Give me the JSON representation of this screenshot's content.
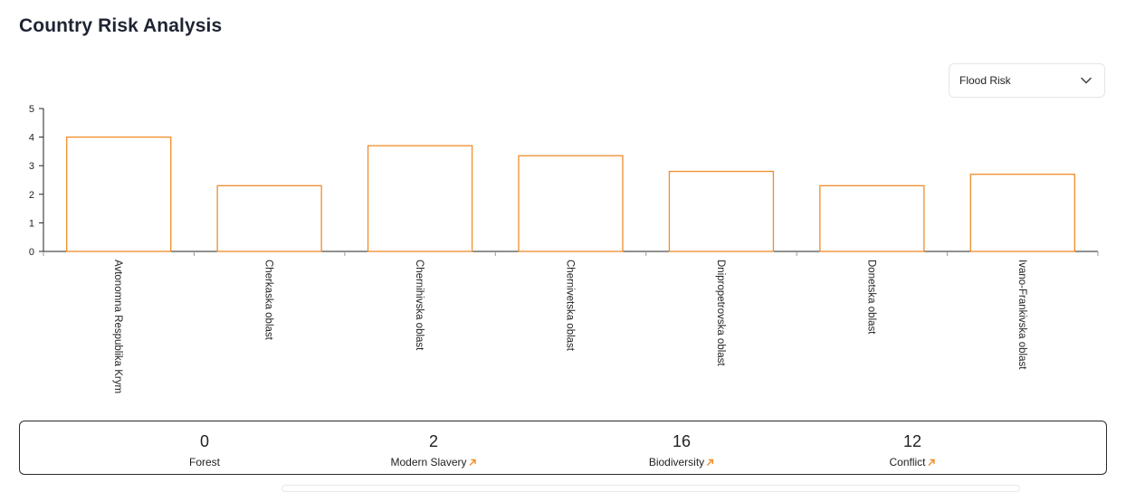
{
  "page": {
    "title": "Country Risk Analysis"
  },
  "risk_selector": {
    "selected": "Flood Risk"
  },
  "chart_data": {
    "type": "bar",
    "title": "",
    "xlabel": "",
    "ylabel": "",
    "ylim": [
      0,
      5
    ],
    "yticks": [
      0,
      1,
      2,
      3,
      4,
      5
    ],
    "categories": [
      "Avtonomna Respublika Krym",
      "Cherkaska oblast",
      "Chernihivska oblast",
      "Chernivetska oblast",
      "Dnipropetrovska oblast",
      "Donetska oblast",
      "Ivano-Frankivska oblast"
    ],
    "series": [
      {
        "name": "Flood Risk",
        "values": [
          4.0,
          2.3,
          3.7,
          3.35,
          2.8,
          2.3,
          2.7
        ]
      }
    ],
    "bar_color": "#f28c28",
    "grid": false
  },
  "summary": {
    "stats": [
      {
        "value": "0",
        "label": "Forest",
        "link": false
      },
      {
        "value": "2",
        "label": "Modern Slavery",
        "link": true
      },
      {
        "value": "16",
        "label": "Biodiversity",
        "link": true
      },
      {
        "value": "12",
        "label": "Conflict",
        "link": true
      }
    ]
  },
  "colors": {
    "accent": "#f28c28",
    "text": "#1f2433"
  }
}
